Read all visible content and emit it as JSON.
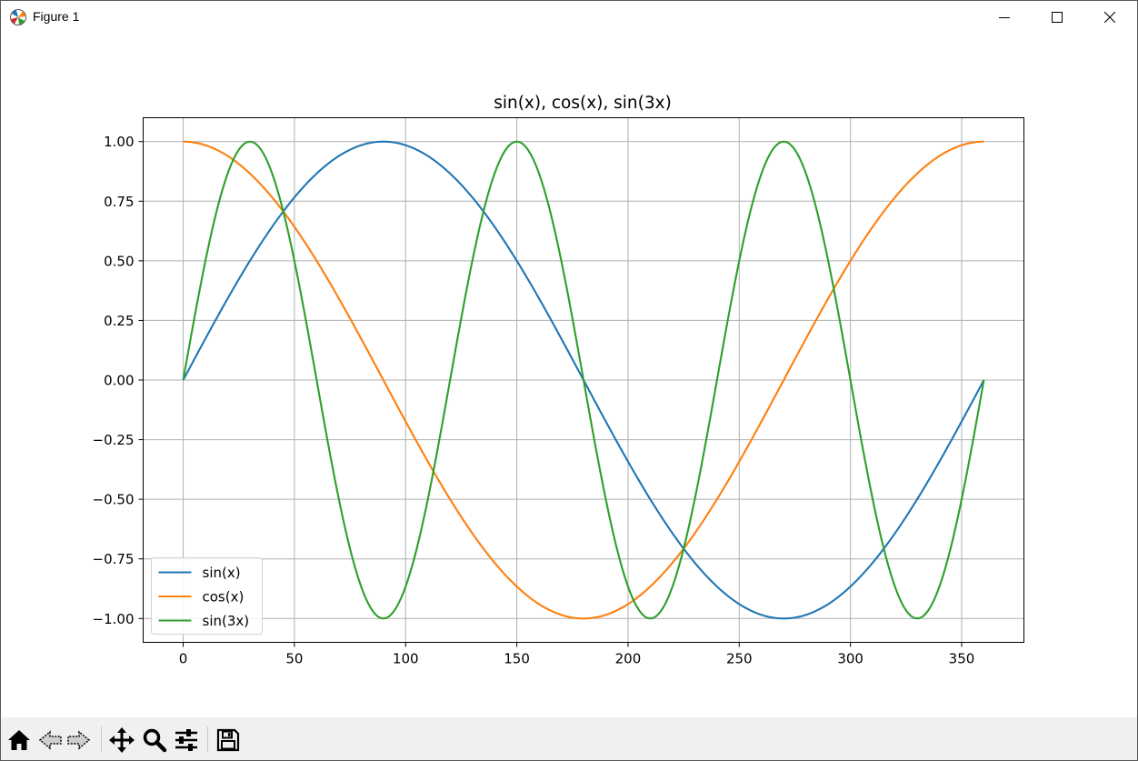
{
  "window": {
    "title": "Figure 1",
    "icon": "matplotlib-icon",
    "controls": [
      "minimize-icon",
      "maximize-icon",
      "close-icon"
    ]
  },
  "toolbar": {
    "buttons": [
      "home-icon",
      "back-icon",
      "forward-icon",
      "pan-icon",
      "zoom-icon",
      "configure-subplots-icon",
      "save-icon"
    ]
  },
  "chart_data": {
    "type": "line",
    "title": "sin(x), cos(x), sin(3x)",
    "xlabel": "",
    "ylabel": "",
    "xlim": [
      -18,
      378
    ],
    "ylim": [
      -1.1,
      1.1
    ],
    "xticks": [
      0,
      50,
      100,
      150,
      200,
      250,
      300,
      350
    ],
    "yticks": [
      1.0,
      0.75,
      0.5,
      0.25,
      0.0,
      -0.25,
      -0.5,
      -0.75,
      -1.0
    ],
    "ytick_labels": [
      "1.00",
      "0.75",
      "0.50",
      "0.25",
      "0.00",
      "−0.25",
      "−0.50",
      "−0.75",
      "−1.00"
    ],
    "grid": true,
    "legend": "lower-left",
    "x_domain": [
      0,
      360
    ],
    "series": [
      {
        "name": "sin(x)",
        "color": "#1f77b4",
        "formula": "sin(x)"
      },
      {
        "name": "cos(x)",
        "color": "#ff7f0e",
        "formula": "cos(x)"
      },
      {
        "name": "sin(3x)",
        "color": "#2ca02c",
        "formula": "sin(3x)"
      }
    ]
  }
}
